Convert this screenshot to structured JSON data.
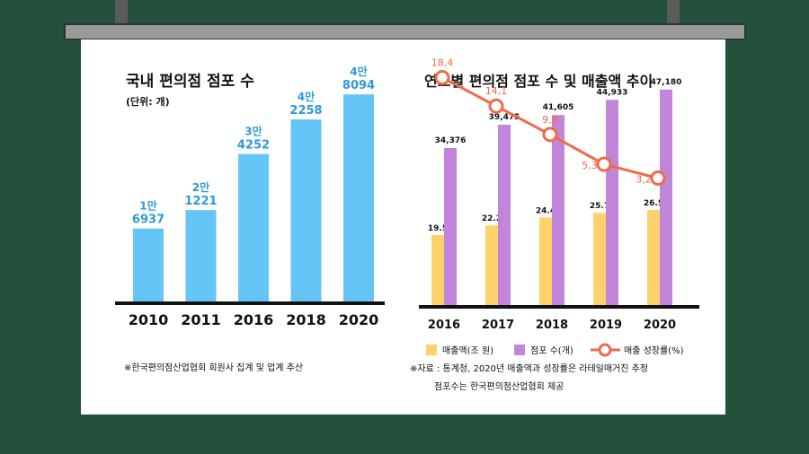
{
  "left": {
    "title": "국내 편의점 점포 수",
    "unit": "(단위: 개)",
    "source": "※한국편의점산업협회 회원사 집계 및 업계 추산"
  },
  "right": {
    "title": "연도별 편의점 점포 수 및 매출액 추이",
    "legend": {
      "sales": "매출액(조 원)",
      "stores": "점포 수(개)",
      "growth": "매출 성장률(%)"
    },
    "source_line1": "※자료 : 통계청, 2020년 매출액과 성장률은 라테일매거진 추정",
    "source_line2": "점포수는 한국편의점산업협회 제공"
  },
  "colors": {
    "background": "#23503a",
    "screen": "#ffffff",
    "left_bar": "#66c5f7",
    "left_label": "#2e9ad8",
    "stores_bar": "#c186d9",
    "sales_bar": "#fdd26b",
    "growth_line": "#ef6a4b"
  },
  "chart_data": [
    {
      "type": "bar",
      "title": "국내 편의점 점포 수",
      "subtitle": "(단위: 개)",
      "categories": [
        "2010",
        "2011",
        "2016",
        "2018",
        "2020"
      ],
      "values": [
        16937,
        21221,
        34252,
        42258,
        48094
      ],
      "labels_top": [
        "1만",
        "2만",
        "3만",
        "4만",
        "4만"
      ],
      "labels_bottom": [
        "6937",
        "1221",
        "4252",
        "2258",
        "8094"
      ],
      "ylim": [
        0,
        50000
      ],
      "grid": false
    },
    {
      "type": "bar",
      "title": "연도별 편의점 점포 수 및 매출액 추이",
      "categories": [
        "2016",
        "2017",
        "2018",
        "2019",
        "2020"
      ],
      "series": [
        {
          "name": "매출액(조 원)",
          "type": "bar",
          "values": [
            19.5,
            22.2,
            24.4,
            25.7,
            26.5
          ],
          "labels": [
            "19.5",
            "22.2",
            "24.4",
            "25.7",
            "26.5"
          ]
        },
        {
          "name": "점포 수(개)",
          "type": "bar",
          "values": [
            34376,
            39475,
            41605,
            44933,
            47180
          ],
          "labels": [
            "34,376",
            "39,475",
            "41,605",
            "44,933",
            "47,180"
          ]
        },
        {
          "name": "매출 성장률(%)",
          "type": "line",
          "values": [
            18.4,
            14.1,
            9.8,
            5.3,
            3.2
          ],
          "labels": [
            "18,4",
            "14,1",
            "9,8",
            "5,3",
            "3,2"
          ]
        }
      ],
      "ylim_stores": [
        0,
        55000
      ],
      "ylim_sales": [
        0,
        70
      ],
      "ylim_growth": [
        -16,
        22
      ],
      "legend_position": "bottom",
      "grid": false
    }
  ]
}
